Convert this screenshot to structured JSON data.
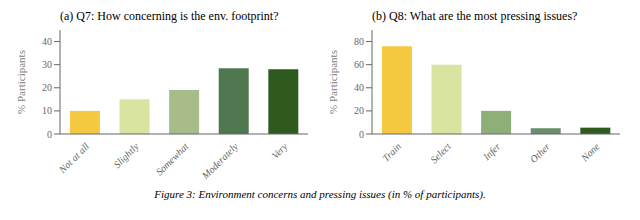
{
  "chart_data": [
    {
      "type": "bar",
      "title": "(a) Q7: How concerning is the env. footprint?",
      "categories": [
        "Not at all",
        "Slightly",
        "Somewhat",
        "Moderately",
        "Very"
      ],
      "values": [
        10,
        15,
        19,
        28.5,
        28
      ],
      "colors": [
        "#F5C842",
        "#D8E4A0",
        "#A8BC8A",
        "#507850",
        "#2E5A1E"
      ],
      "ylim": [
        0,
        45
      ],
      "yticks": [
        0,
        10,
        20,
        30,
        40
      ],
      "ylabel": "% Participants"
    },
    {
      "type": "bar",
      "title": "(b) Q8: What are the most pressing issues?",
      "categories": [
        "Train",
        "Select",
        "Infer",
        "Other",
        "None"
      ],
      "values": [
        76,
        60,
        20,
        5,
        5.5
      ],
      "colors": [
        "#F5C842",
        "#D8E4A0",
        "#8FAF78",
        "#6A8F6A",
        "#2E5A1E"
      ],
      "ylim": [
        0,
        90
      ],
      "yticks": [
        0,
        20,
        40,
        60,
        80
      ],
      "ylabel": "% Participants"
    }
  ],
  "caption": "Figure 3: Environment concerns and pressing issues (in % of participants)."
}
